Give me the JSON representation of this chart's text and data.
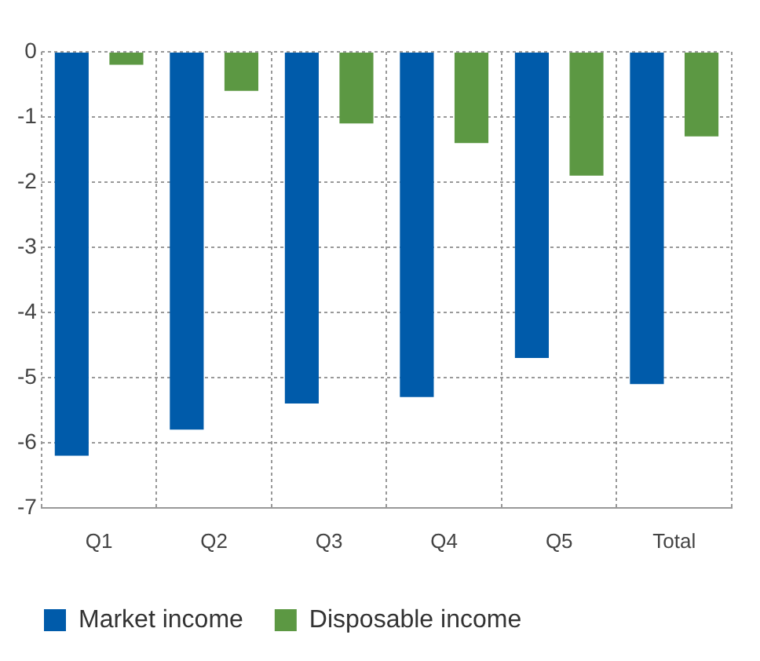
{
  "chart_data": {
    "type": "bar",
    "categories": [
      "Q1",
      "Q2",
      "Q3",
      "Q4",
      "Q5",
      "Total"
    ],
    "series": [
      {
        "name": "Market income",
        "color": "#005baa",
        "values": [
          -6.2,
          -5.8,
          -5.4,
          -5.3,
          -4.7,
          -5.1
        ]
      },
      {
        "name": "Disposable income",
        "color": "#5c9843",
        "values": [
          -0.2,
          -0.6,
          -1.1,
          -1.4,
          -1.9,
          -1.3
        ]
      }
    ],
    "ylim": [
      -7,
      0
    ],
    "yticks": [
      0,
      -1,
      -2,
      -3,
      -4,
      -5,
      -6,
      -7
    ],
    "grid": true,
    "legend": "bottom left"
  }
}
